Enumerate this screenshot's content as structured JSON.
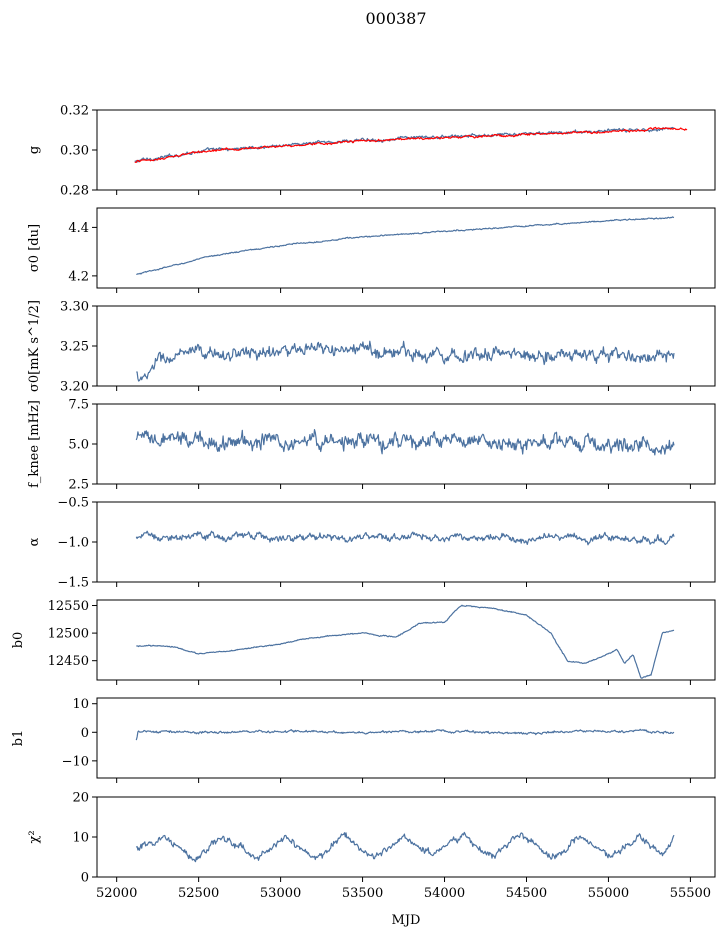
{
  "figure": {
    "suptitle": "000387",
    "shared_xlabel": "MJD",
    "x_ticks": [
      52000,
      52500,
      53000,
      53500,
      54000,
      54500,
      55000,
      55500
    ],
    "xlim": [
      51880,
      55650
    ]
  },
  "colors": {
    "primary": "#4c72a0",
    "red_overlay": "#ff0000"
  },
  "chart_data": [
    {
      "type": "line",
      "ylabel": "g",
      "ylim": [
        0.28,
        0.32
      ],
      "yticks": [
        0.28,
        0.3,
        0.32
      ],
      "ytick_labels": [
        "0.28",
        "0.30",
        "0.32"
      ],
      "series": [
        {
          "color": "#4c72a0",
          "noise": 0.0009,
          "x": [
            52110,
            52150,
            52300,
            52500,
            52800,
            53100,
            53500,
            54000,
            54500,
            55000,
            55200,
            55400
          ],
          "y": [
            0.294,
            0.295,
            0.2965,
            0.2995,
            0.301,
            0.303,
            0.305,
            0.3065,
            0.308,
            0.3095,
            0.31,
            0.311
          ]
        },
        {
          "color": "#ff0000",
          "noise": 0.0006,
          "x": [
            52110,
            52150,
            52300,
            52500,
            52800,
            53100,
            53500,
            54000,
            54500,
            55000,
            55200,
            55400,
            55480
          ],
          "y": [
            0.294,
            0.2945,
            0.296,
            0.299,
            0.301,
            0.3025,
            0.3045,
            0.306,
            0.3078,
            0.3093,
            0.31,
            0.311,
            0.3105
          ]
        }
      ]
    },
    {
      "type": "line",
      "ylabel": "σ0 [du]",
      "ylim": [
        4.15,
        4.48
      ],
      "yticks": [
        4.2,
        4.4
      ],
      "ytick_labels": [
        "4.2",
        "4.4"
      ],
      "series": [
        {
          "color": "#4c72a0",
          "noise": 0.003,
          "x": [
            52120,
            52300,
            52600,
            53000,
            53400,
            53800,
            54200,
            54600,
            55000,
            55400
          ],
          "y": [
            4.205,
            4.235,
            4.285,
            4.325,
            4.355,
            4.375,
            4.392,
            4.41,
            4.428,
            4.44
          ]
        }
      ]
    },
    {
      "type": "line",
      "ylabel": "σ0[mK s^1/2]",
      "ylim": [
        3.2,
        3.3
      ],
      "yticks": [
        3.2,
        3.25,
        3.3
      ],
      "ytick_labels": [
        "3.20",
        "3.25",
        "3.30"
      ],
      "series": [
        {
          "color": "#4c72a0",
          "noise": 0.009,
          "x": [
            52120,
            52170,
            52250,
            52400,
            52600,
            53000,
            53500,
            54000,
            54500,
            55000,
            55400
          ],
          "y": [
            3.215,
            3.205,
            3.232,
            3.238,
            3.24,
            3.243,
            3.245,
            3.24,
            3.24,
            3.238,
            3.235
          ]
        }
      ]
    },
    {
      "type": "line",
      "ylabel": "f_knee [mHz]",
      "ylim": [
        2.5,
        7.5
      ],
      "yticks": [
        2.5,
        5.0,
        7.5
      ],
      "ytick_labels": [
        "2.5",
        "5.0",
        "7.5"
      ],
      "series": [
        {
          "color": "#4c72a0",
          "noise": 0.55,
          "x": [
            52120,
            53000,
            54000,
            55000,
            55400
          ],
          "y": [
            5.2,
            5.2,
            5.1,
            5.0,
            4.8
          ]
        }
      ]
    },
    {
      "type": "line",
      "ylabel": "α",
      "ylim": [
        -1.5,
        -0.5
      ],
      "yticks": [
        -1.5,
        -1.0,
        -0.5
      ],
      "ytick_labels": [
        "−1.5",
        "−1.0",
        "−0.5"
      ],
      "series": [
        {
          "color": "#4c72a0",
          "noise": 0.05,
          "x": [
            52120,
            53000,
            54000,
            55000,
            55400
          ],
          "y": [
            -0.93,
            -0.94,
            -0.94,
            -0.95,
            -0.96
          ]
        }
      ]
    },
    {
      "type": "line",
      "ylabel": "b0",
      "ylim": [
        12415,
        12560
      ],
      "yticks": [
        12450,
        12500,
        12550
      ],
      "ytick_labels": [
        "12450",
        "12500",
        "12550"
      ],
      "series": [
        {
          "color": "#4c72a0",
          "noise": 1.2,
          "x": [
            52120,
            52200,
            52350,
            52500,
            52750,
            52950,
            53200,
            53500,
            53700,
            53850,
            54000,
            54100,
            54300,
            54500,
            54650,
            54750,
            54850,
            55000,
            55050,
            55100,
            55150,
            55200,
            55260,
            55330,
            55400
          ],
          "y": [
            12476,
            12477,
            12475,
            12462,
            12470,
            12478,
            12492,
            12500,
            12493,
            12518,
            12520,
            12550,
            12545,
            12532,
            12500,
            12450,
            12445,
            12462,
            12470,
            12445,
            12462,
            12418,
            12424,
            12500,
            12505
          ]
        }
      ]
    },
    {
      "type": "line",
      "ylabel": "b1",
      "ylim": [
        -16,
        12
      ],
      "yticks": [
        -10,
        0,
        10
      ],
      "ytick_labels": [
        "−10",
        "0",
        "10"
      ],
      "series": [
        {
          "color": "#4c72a0",
          "noise": 0.45,
          "x": [
            52120,
            52130,
            52200,
            52500,
            53000,
            53500,
            54000,
            54500,
            54800,
            55000,
            55200,
            55400
          ],
          "y": [
            -3,
            0.3,
            0.2,
            0.0,
            0.3,
            0.0,
            0.4,
            -0.5,
            0.5,
            0.2,
            0.5,
            0.0
          ]
        }
      ]
    },
    {
      "type": "line",
      "ylabel": "χ²",
      "ylim": [
        0,
        20
      ],
      "yticks": [
        0,
        10,
        20
      ],
      "ytick_labels": [
        "0",
        "10",
        "20"
      ],
      "series": [
        {
          "color": "#4c72a0",
          "noise": 1.0,
          "x": [
            52120,
            52300,
            52480,
            52650,
            52850,
            53030,
            53210,
            53390,
            53570,
            53750,
            53930,
            54110,
            54290,
            54470,
            54650,
            54830,
            55010,
            55190,
            55330,
            55400
          ],
          "y": [
            7,
            10,
            4.5,
            10,
            4.5,
            10,
            4.5,
            10.5,
            5,
            10.5,
            5,
            11,
            5,
            10.5,
            5,
            10.5,
            5,
            10,
            5,
            10
          ]
        }
      ]
    }
  ]
}
